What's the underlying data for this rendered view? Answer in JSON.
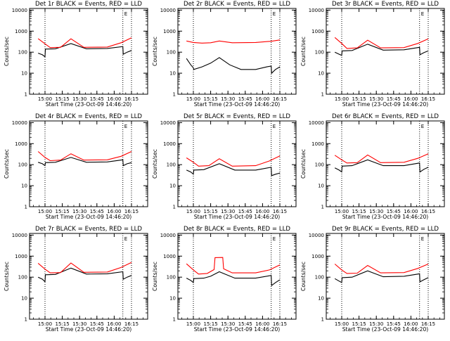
{
  "chart_data": [
    {
      "type": "line",
      "title": "Det 1r BLACK = Events, RED = LLD",
      "xlabel": "Start Time (23-Oct-09 14:46:20)",
      "ylabel": "Counts/sec",
      "marker": "E",
      "series": [
        {
          "color": "#000000",
          "points": [
            [
              -0.08,
              90
            ],
            [
              -0.03,
              75
            ],
            [
              0,
              60
            ],
            [
              0.005,
              140
            ],
            [
              0.12,
              145
            ],
            [
              0.3,
              255
            ],
            [
              0.48,
              145
            ],
            [
              0.72,
              150
            ],
            [
              0.9,
              185
            ],
            [
              0.905,
              80
            ],
            [
              0.95,
              100
            ],
            [
              1.0,
              120
            ]
          ]
        },
        {
          "color": "#ff0000",
          "points": [
            [
              -0.08,
              440
            ],
            [
              0,
              250
            ],
            [
              0.06,
              165
            ],
            [
              0.18,
              170
            ],
            [
              0.3,
              430
            ],
            [
              0.45,
              170
            ],
            [
              0.72,
              175
            ],
            [
              0.88,
              280
            ],
            [
              1.0,
              480
            ]
          ]
        }
      ]
    },
    {
      "type": "line",
      "title": "Det 2r BLACK = Events, RED = LLD",
      "xlabel": "Start Time (23-Oct-09 14:46:20)",
      "ylabel": "Counts/sec",
      "marker": "E",
      "series": [
        {
          "color": "#000000",
          "points": [
            [
              -0.08,
              50
            ],
            [
              -0.03,
              25
            ],
            [
              0,
              18
            ],
            [
              0.005,
              15
            ],
            [
              0.1,
              20
            ],
            [
              0.2,
              30
            ],
            [
              0.3,
              55
            ],
            [
              0.42,
              25
            ],
            [
              0.55,
              15
            ],
            [
              0.72,
              15
            ],
            [
              0.85,
              20
            ],
            [
              0.9,
              22
            ],
            [
              0.905,
              10
            ],
            [
              0.95,
              15
            ],
            [
              1.0,
              20
            ]
          ]
        },
        {
          "color": "#ff0000",
          "points": [
            [
              -0.08,
              340
            ],
            [
              0,
              290
            ],
            [
              0.1,
              270
            ],
            [
              0.2,
              280
            ],
            [
              0.3,
              340
            ],
            [
              0.45,
              280
            ],
            [
              0.72,
              290
            ],
            [
              0.9,
              330
            ],
            [
              1.0,
              380
            ]
          ]
        }
      ]
    },
    {
      "type": "line",
      "title": "Det 3r BLACK = Events, RED = LLD",
      "xlabel": "Start Time (23-Oct-09 14:46:20)",
      "ylabel": "Counts/sec",
      "marker": "E",
      "series": [
        {
          "color": "#000000",
          "points": [
            [
              -0.08,
              100
            ],
            [
              -0.03,
              80
            ],
            [
              0,
              70
            ],
            [
              0.005,
              115
            ],
            [
              0.12,
              120
            ],
            [
              0.3,
              240
            ],
            [
              0.48,
              125
            ],
            [
              0.72,
              130
            ],
            [
              0.9,
              170
            ],
            [
              0.905,
              75
            ],
            [
              0.95,
              95
            ],
            [
              1.0,
              115
            ]
          ]
        },
        {
          "color": "#ff0000",
          "points": [
            [
              -0.08,
              500
            ],
            [
              0,
              260
            ],
            [
              0.06,
              150
            ],
            [
              0.18,
              160
            ],
            [
              0.3,
              370
            ],
            [
              0.45,
              160
            ],
            [
              0.72,
              165
            ],
            [
              0.88,
              260
            ],
            [
              1.0,
              430
            ]
          ]
        }
      ]
    },
    {
      "type": "line",
      "title": "Det 4r BLACK = Events, RED = LLD",
      "xlabel": "Start Time (23-Oct-09 14:46:20)",
      "ylabel": "Counts/sec",
      "marker": "E",
      "series": [
        {
          "color": "#000000",
          "points": [
            [
              -0.08,
              130
            ],
            [
              -0.03,
              110
            ],
            [
              0,
              90
            ],
            [
              0.005,
              125
            ],
            [
              0.12,
              130
            ],
            [
              0.3,
              220
            ],
            [
              0.48,
              130
            ],
            [
              0.72,
              135
            ],
            [
              0.9,
              170
            ],
            [
              0.905,
              90
            ],
            [
              0.95,
              110
            ],
            [
              1.0,
              125
            ]
          ]
        },
        {
          "color": "#ff0000",
          "points": [
            [
              -0.08,
              420
            ],
            [
              0,
              220
            ],
            [
              0.06,
              155
            ],
            [
              0.18,
              165
            ],
            [
              0.3,
              330
            ],
            [
              0.45,
              165
            ],
            [
              0.72,
              170
            ],
            [
              0.88,
              250
            ],
            [
              1.0,
              420
            ]
          ]
        }
      ]
    },
    {
      "type": "line",
      "title": "Det 5r BLACK = Events, RED = LLD",
      "xlabel": "Start Time (23-Oct-09 14:46:20)",
      "ylabel": "Counts/sec",
      "marker": "E",
      "series": [
        {
          "color": "#000000",
          "points": [
            [
              -0.08,
              55
            ],
            [
              -0.03,
              45
            ],
            [
              0,
              35
            ],
            [
              0.005,
              55
            ],
            [
              0.12,
              58
            ],
            [
              0.3,
              110
            ],
            [
              0.48,
              55
            ],
            [
              0.72,
              55
            ],
            [
              0.9,
              75
            ],
            [
              0.905,
              30
            ],
            [
              0.95,
              35
            ],
            [
              1.0,
              40
            ]
          ]
        },
        {
          "color": "#ff0000",
          "points": [
            [
              -0.08,
              210
            ],
            [
              0,
              130
            ],
            [
              0.06,
              85
            ],
            [
              0.18,
              90
            ],
            [
              0.3,
              190
            ],
            [
              0.45,
              85
            ],
            [
              0.72,
              90
            ],
            [
              0.88,
              150
            ],
            [
              1.0,
              260
            ]
          ]
        }
      ]
    },
    {
      "type": "line",
      "title": "Det 6r BLACK = Events, RED = LLD",
      "xlabel": "Start Time (23-Oct-09 14:46:20)",
      "ylabel": "Counts/sec",
      "marker": "E",
      "series": [
        {
          "color": "#000000",
          "points": [
            [
              -0.08,
              70
            ],
            [
              -0.03,
              55
            ],
            [
              0,
              45
            ],
            [
              0.005,
              85
            ],
            [
              0.12,
              90
            ],
            [
              0.3,
              170
            ],
            [
              0.48,
              90
            ],
            [
              0.72,
              90
            ],
            [
              0.9,
              120
            ],
            [
              0.905,
              45
            ],
            [
              0.95,
              60
            ],
            [
              1.0,
              75
            ]
          ]
        },
        {
          "color": "#ff0000",
          "points": [
            [
              -0.08,
              280
            ],
            [
              0,
              170
            ],
            [
              0.06,
              120
            ],
            [
              0.18,
              125
            ],
            [
              0.3,
              290
            ],
            [
              0.45,
              125
            ],
            [
              0.72,
              130
            ],
            [
              0.88,
              200
            ],
            [
              1.0,
              330
            ]
          ]
        }
      ]
    },
    {
      "type": "line",
      "title": "Det 7r BLACK = Events, RED = LLD",
      "xlabel": "Start Time (23-Oct-09 14:46:20)",
      "ylabel": "Counts/sec",
      "marker": "E",
      "series": [
        {
          "color": "#000000",
          "points": [
            [
              -0.08,
              100
            ],
            [
              -0.03,
              80
            ],
            [
              0,
              60
            ],
            [
              0.005,
              130
            ],
            [
              0.12,
              135
            ],
            [
              0.3,
              270
            ],
            [
              0.48,
              140
            ],
            [
              0.72,
              145
            ],
            [
              0.9,
              180
            ],
            [
              0.905,
              80
            ],
            [
              0.95,
              100
            ],
            [
              1.0,
              120
            ]
          ]
        },
        {
          "color": "#ff0000",
          "points": [
            [
              -0.08,
              460
            ],
            [
              0,
              240
            ],
            [
              0.06,
              160
            ],
            [
              0.18,
              165
            ],
            [
              0.3,
              470
            ],
            [
              0.45,
              170
            ],
            [
              0.72,
              175
            ],
            [
              0.88,
              290
            ],
            [
              1.0,
              500
            ]
          ]
        }
      ]
    },
    {
      "type": "line",
      "title": "Det 8r BLACK = Events, RED = LLD",
      "xlabel": "Start Time (23-Oct-09 14:46:20)",
      "ylabel": "Counts/sec",
      "marker": "E",
      "series": [
        {
          "color": "#000000",
          "points": [
            [
              -0.08,
              90
            ],
            [
              -0.03,
              70
            ],
            [
              0,
              55
            ],
            [
              0.005,
              85
            ],
            [
              0.12,
              90
            ],
            [
              0.2,
              110
            ],
            [
              0.3,
              180
            ],
            [
              0.48,
              90
            ],
            [
              0.72,
              90
            ],
            [
              0.9,
              120
            ],
            [
              0.905,
              40
            ],
            [
              0.95,
              55
            ],
            [
              1.0,
              75
            ]
          ]
        },
        {
          "color": "#ff0000",
          "points": [
            [
              -0.08,
              430
            ],
            [
              0,
              220
            ],
            [
              0.06,
              140
            ],
            [
              0.16,
              150
            ],
            [
              0.24,
              230
            ],
            [
              0.25,
              850
            ],
            [
              0.34,
              860
            ],
            [
              0.35,
              250
            ],
            [
              0.45,
              160
            ],
            [
              0.72,
              160
            ],
            [
              0.88,
              220
            ],
            [
              1.0,
              380
            ]
          ]
        }
      ]
    },
    {
      "type": "line",
      "title": "Det 9r BLACK = Events, RED = LLD",
      "xlabel": "Start Time (23-Oct-09 14:46:20)",
      "ylabel": "Counts/sec",
      "marker": "E",
      "series": [
        {
          "color": "#000000",
          "points": [
            [
              -0.08,
              85
            ],
            [
              -0.03,
              65
            ],
            [
              0,
              55
            ],
            [
              0.005,
              95
            ],
            [
              0.12,
              100
            ],
            [
              0.3,
              200
            ],
            [
              0.48,
              105
            ],
            [
              0.72,
              110
            ],
            [
              0.9,
              145
            ],
            [
              0.905,
              60
            ],
            [
              0.95,
              75
            ],
            [
              1.0,
              95
            ]
          ]
        },
        {
          "color": "#ff0000",
          "points": [
            [
              -0.08,
              420
            ],
            [
              0,
              220
            ],
            [
              0.06,
              150
            ],
            [
              0.18,
              155
            ],
            [
              0.3,
              360
            ],
            [
              0.45,
              160
            ],
            [
              0.72,
              165
            ],
            [
              0.88,
              260
            ],
            [
              1.0,
              420
            ]
          ]
        }
      ]
    }
  ],
  "shared_axes": {
    "xticks": [
      "15:00",
      "15:15",
      "15:30",
      "15:45",
      "16:00",
      "16:15"
    ],
    "ymin": 1,
    "ymax": 12000,
    "yscale": "log",
    "yticks": [
      "1",
      "10",
      "100",
      "1000",
      "10000"
    ]
  }
}
